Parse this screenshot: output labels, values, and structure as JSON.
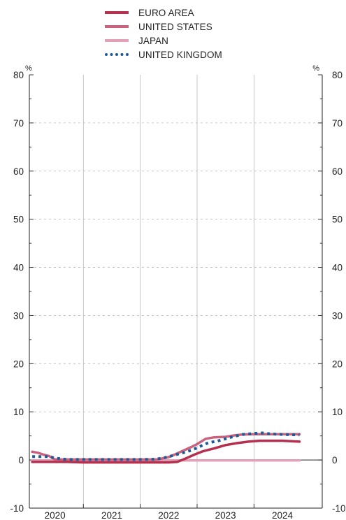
{
  "chart_data": {
    "type": "line",
    "unit_left": "%",
    "unit_right": "%",
    "ylim": [
      -10,
      80
    ],
    "yticks": [
      -10,
      0,
      10,
      20,
      30,
      40,
      50,
      60,
      70,
      80
    ],
    "xlim": [
      2019.55,
      2024.7
    ],
    "x_tick_labels": [
      {
        "label": "2020",
        "x": 2020.0
      },
      {
        "label": "2021",
        "x": 2021.0
      },
      {
        "label": "2022",
        "x": 2022.0
      },
      {
        "label": "2023",
        "x": 2023.0
      },
      {
        "label": "2024",
        "x": 2024.0
      }
    ],
    "year_boundaries": [
      2020.5,
      2021.5,
      2022.5,
      2023.5
    ],
    "grid": "dashed horizontal, solid vertical",
    "legend_position": "top-center",
    "series": [
      {
        "name": "EURO AREA",
        "color": "#b5304f",
        "style": "solid",
        "points": [
          [
            2019.6,
            -0.4
          ],
          [
            2019.9,
            -0.4
          ],
          [
            2020.2,
            -0.4
          ],
          [
            2020.5,
            -0.5
          ],
          [
            2020.9,
            -0.5
          ],
          [
            2021.3,
            -0.5
          ],
          [
            2021.5,
            -0.5
          ],
          [
            2021.8,
            -0.5
          ],
          [
            2022.0,
            -0.5
          ],
          [
            2022.15,
            -0.4
          ],
          [
            2022.3,
            0.3
          ],
          [
            2022.45,
            1.1
          ],
          [
            2022.6,
            1.8
          ],
          [
            2022.8,
            2.4
          ],
          [
            2023.0,
            3.1
          ],
          [
            2023.2,
            3.5
          ],
          [
            2023.4,
            3.8
          ],
          [
            2023.6,
            4.0
          ],
          [
            2023.8,
            4.0
          ],
          [
            2024.0,
            4.0
          ],
          [
            2024.3,
            3.8
          ]
        ]
      },
      {
        "name": "UNITED STATES",
        "color": "#c9627d",
        "style": "solid",
        "points": [
          [
            2019.6,
            1.7
          ],
          [
            2019.7,
            1.5
          ],
          [
            2019.8,
            1.1
          ],
          [
            2019.9,
            0.8
          ],
          [
            2020.0,
            0.1
          ],
          [
            2020.3,
            0.1
          ],
          [
            2020.6,
            0.1
          ],
          [
            2021.0,
            0.1
          ],
          [
            2021.3,
            0.1
          ],
          [
            2021.6,
            0.1
          ],
          [
            2021.8,
            0.1
          ],
          [
            2022.0,
            0.6
          ],
          [
            2022.1,
            1.1
          ],
          [
            2022.25,
            1.9
          ],
          [
            2022.4,
            2.7
          ],
          [
            2022.5,
            3.3
          ],
          [
            2022.65,
            4.4
          ],
          [
            2022.8,
            4.7
          ],
          [
            2023.0,
            4.8
          ],
          [
            2023.15,
            5.1
          ],
          [
            2023.3,
            5.3
          ],
          [
            2023.5,
            5.35
          ],
          [
            2023.8,
            5.35
          ],
          [
            2024.0,
            5.35
          ],
          [
            2024.3,
            5.35
          ]
        ]
      },
      {
        "name": "JAPAN",
        "color": "#e3a0b6",
        "style": "solid",
        "points": [
          [
            2019.6,
            -0.1
          ],
          [
            2020.0,
            -0.1
          ],
          [
            2020.5,
            -0.1
          ],
          [
            2021.0,
            -0.1
          ],
          [
            2021.5,
            -0.1
          ],
          [
            2022.0,
            -0.1
          ],
          [
            2022.5,
            -0.1
          ],
          [
            2023.0,
            -0.1
          ],
          [
            2023.5,
            -0.1
          ],
          [
            2024.0,
            -0.1
          ],
          [
            2024.3,
            -0.1
          ]
        ]
      },
      {
        "name": "UNITED KINGDOM",
        "color": "#1f5a96",
        "style": "dotted",
        "points": [
          [
            2019.6,
            0.7
          ],
          [
            2019.9,
            0.7
          ],
          [
            2020.0,
            0.4
          ],
          [
            2020.2,
            0.1
          ],
          [
            2020.5,
            0.1
          ],
          [
            2021.0,
            0.1
          ],
          [
            2021.5,
            0.1
          ],
          [
            2021.75,
            0.15
          ],
          [
            2021.9,
            0.4
          ],
          [
            2022.0,
            0.7
          ],
          [
            2022.1,
            1.0
          ],
          [
            2022.25,
            1.5
          ],
          [
            2022.4,
            2.0
          ],
          [
            2022.55,
            2.8
          ],
          [
            2022.7,
            3.6
          ],
          [
            2022.85,
            3.9
          ],
          [
            2023.0,
            4.4
          ],
          [
            2023.15,
            4.9
          ],
          [
            2023.3,
            5.3
          ],
          [
            2023.5,
            5.5
          ],
          [
            2023.65,
            5.6
          ],
          [
            2023.8,
            5.4
          ],
          [
            2024.0,
            5.3
          ],
          [
            2024.15,
            5.25
          ],
          [
            2024.3,
            5.2
          ]
        ]
      }
    ]
  }
}
